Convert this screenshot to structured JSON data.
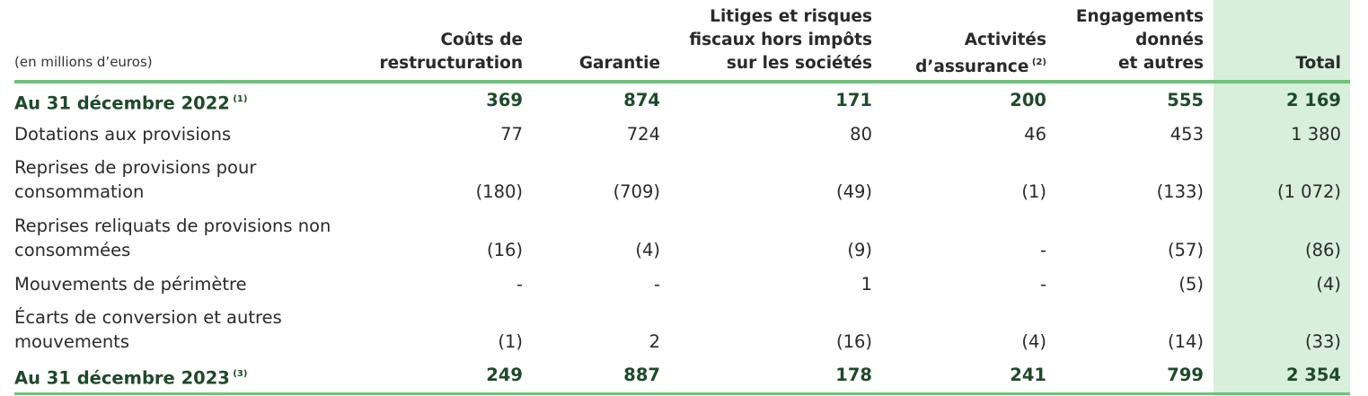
{
  "unit_note": "(en millions d’euros)",
  "columns": [
    {
      "lines": [
        "Coûts de",
        "restructuration"
      ],
      "note": ""
    },
    {
      "lines": [
        "Garantie"
      ],
      "note": ""
    },
    {
      "lines": [
        "Litiges et risques",
        "fiscaux hors impôts",
        "sur les sociétés"
      ],
      "note": ""
    },
    {
      "lines": [
        "Activités",
        "d’assurance"
      ],
      "note": "(2)"
    },
    {
      "lines": [
        "Engagements",
        "donnés",
        "et autres"
      ],
      "note": ""
    },
    {
      "lines": [
        "Total"
      ],
      "note": ""
    }
  ],
  "rows": [
    {
      "label_lines": [
        "Au 31 décembre 2022"
      ],
      "note": "(1)",
      "bold": true,
      "values": [
        "369",
        "874",
        "171",
        "200",
        "555",
        "2 169"
      ]
    },
    {
      "label_lines": [
        "Dotations aux provisions"
      ],
      "note": "",
      "bold": false,
      "values": [
        "77",
        "724",
        "80",
        "46",
        "453",
        "1 380"
      ]
    },
    {
      "label_lines": [
        "Reprises de provisions pour",
        "consommation"
      ],
      "note": "",
      "bold": false,
      "values": [
        "(180)",
        "(709)",
        "(49)",
        "(1)",
        "(133)",
        "(1 072)"
      ]
    },
    {
      "label_lines": [
        "Reprises reliquats de provisions non",
        "consommées"
      ],
      "note": "",
      "bold": false,
      "values": [
        "(16)",
        "(4)",
        "(9)",
        "-",
        "(57)",
        "(86)"
      ]
    },
    {
      "label_lines": [
        "Mouvements de périmètre"
      ],
      "note": "",
      "bold": false,
      "values": [
        "-",
        "-",
        "1",
        "-",
        "(5)",
        "(4)"
      ]
    },
    {
      "label_lines": [
        "Écarts de conversion et autres",
        "mouvements"
      ],
      "note": "",
      "bold": false,
      "values": [
        "(1)",
        "2",
        "(16)",
        "(4)",
        "(14)",
        "(33)"
      ]
    },
    {
      "label_lines": [
        "Au 31 décembre 2023"
      ],
      "note": "(3)",
      "bold": true,
      "values": [
        "249",
        "887",
        "178",
        "241",
        "799",
        "2 354"
      ]
    }
  ],
  "colors": {
    "rule": "#6cc476",
    "total_bg": "#d8efdb",
    "bold_text": "#1e4a2a"
  }
}
